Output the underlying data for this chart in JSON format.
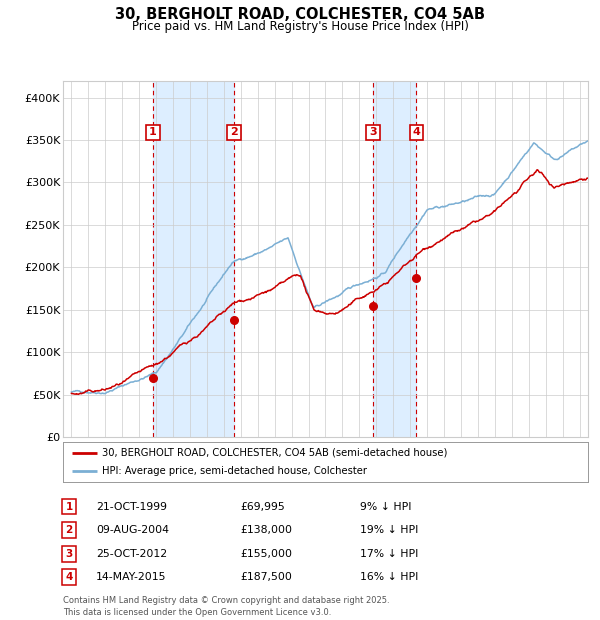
{
  "title": "30, BERGHOLT ROAD, COLCHESTER, CO4 5AB",
  "subtitle": "Price paid vs. HM Land Registry's House Price Index (HPI)",
  "legend_line1": "30, BERGHOLT ROAD, COLCHESTER, CO4 5AB (semi-detached house)",
  "legend_line2": "HPI: Average price, semi-detached house, Colchester",
  "footer1": "Contains HM Land Registry data © Crown copyright and database right 2025.",
  "footer2": "This data is licensed under the Open Government Licence v3.0.",
  "hpi_color": "#7bafd4",
  "price_color": "#cc0000",
  "background_color": "#ffffff",
  "shade_color": "#ddeeff",
  "grid_color": "#cccccc",
  "purchases": [
    {
      "label": "1",
      "date_x": 1999.81,
      "price": 69995,
      "hpi_pct": "9% ↓ HPI",
      "date_str": "21-OCT-1999"
    },
    {
      "label": "2",
      "date_x": 2004.6,
      "price": 138000,
      "hpi_pct": "19% ↓ HPI",
      "date_str": "09-AUG-2004"
    },
    {
      "label": "3",
      "date_x": 2012.81,
      "price": 155000,
      "hpi_pct": "17% ↓ HPI",
      "date_str": "25-OCT-2012"
    },
    {
      "label": "4",
      "date_x": 2015.36,
      "price": 187500,
      "hpi_pct": "16% ↓ HPI",
      "date_str": "14-MAY-2015"
    }
  ],
  "ylim": [
    0,
    420000
  ],
  "xlim": [
    1994.5,
    2025.5
  ],
  "yticks": [
    0,
    50000,
    100000,
    150000,
    200000,
    250000,
    300000,
    350000,
    400000
  ],
  "ytick_labels": [
    "£0",
    "£50K",
    "£100K",
    "£150K",
    "£200K",
    "£250K",
    "£300K",
    "£350K",
    "£400K"
  ]
}
